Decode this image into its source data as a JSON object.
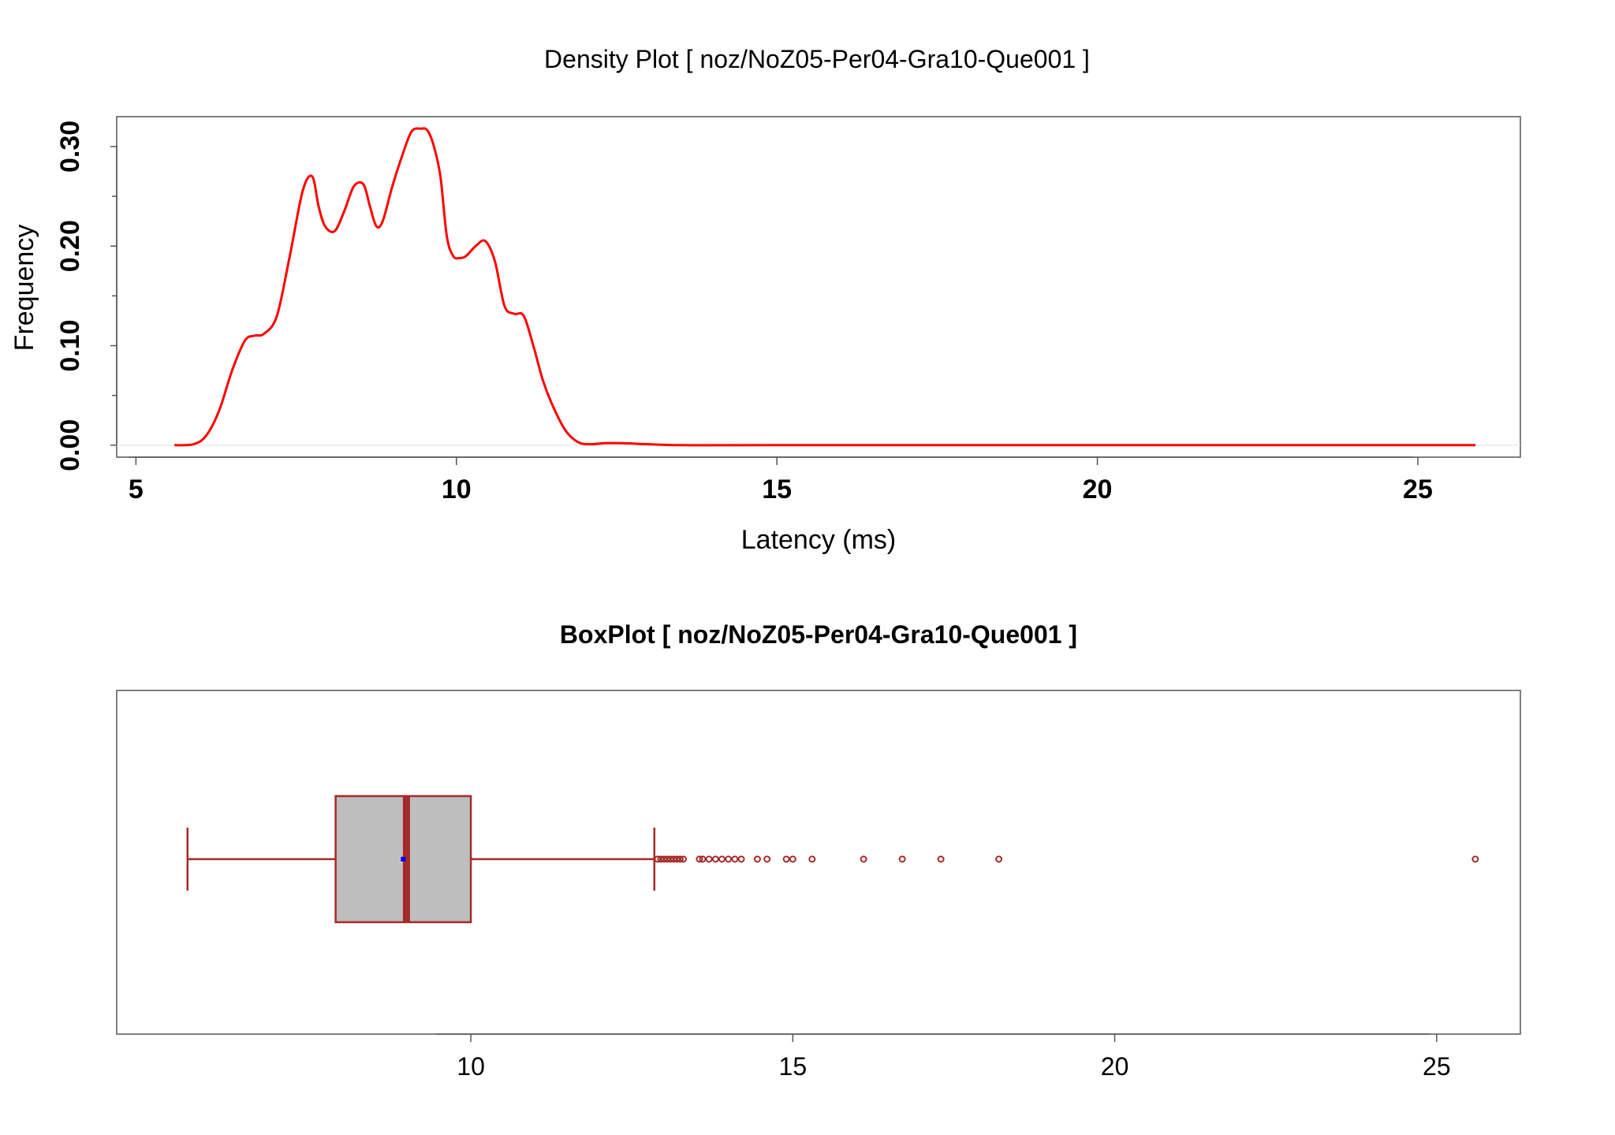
{
  "chart_data": [
    {
      "type": "line",
      "title": "Density Plot [ noz/NoZ05-Per04-Gra10-Que001 ]",
      "xlabel": "Latency (ms)",
      "ylabel": "Frequency",
      "xlim": [
        4.7,
        26.6
      ],
      "ylim": [
        -0.012,
        0.33
      ],
      "x_ticks": [
        "5",
        "10",
        "15",
        "20",
        "25"
      ],
      "x_tick_values": [
        5,
        10,
        15,
        20,
        25
      ],
      "y_ticks": [
        "0.00",
        "0.10",
        "0.20",
        "0.30"
      ],
      "y_tick_values": [
        0.0,
        0.1,
        0.2,
        0.3
      ],
      "y_minor_ticks": [
        0.05,
        0.15,
        0.25
      ],
      "grid": false,
      "color": "#ff0000",
      "series": [
        {
          "x": [
            5.6,
            5.9,
            6.1,
            6.3,
            6.5,
            6.7,
            6.85,
            7.0,
            7.2,
            7.4,
            7.6,
            7.75,
            7.85,
            7.95,
            8.1,
            8.25,
            8.4,
            8.55,
            8.65,
            8.75,
            8.85,
            9.0,
            9.15,
            9.3,
            9.45,
            9.55,
            9.65,
            9.75,
            9.85,
            9.95,
            10.05,
            10.15,
            10.3,
            10.45,
            10.6,
            10.75,
            10.9,
            11.05,
            11.2,
            11.35,
            11.5,
            11.7,
            11.9,
            12.1,
            12.3,
            12.6,
            13.0,
            13.5,
            15.0,
            20.0,
            25.9
          ],
          "y": [
            0.0,
            0.001,
            0.01,
            0.035,
            0.075,
            0.105,
            0.11,
            0.112,
            0.13,
            0.19,
            0.255,
            0.27,
            0.24,
            0.22,
            0.215,
            0.235,
            0.26,
            0.262,
            0.24,
            0.22,
            0.225,
            0.26,
            0.29,
            0.315,
            0.318,
            0.316,
            0.3,
            0.27,
            0.21,
            0.19,
            0.188,
            0.19,
            0.2,
            0.205,
            0.185,
            0.14,
            0.132,
            0.13,
            0.1,
            0.065,
            0.04,
            0.015,
            0.003,
            0.001,
            0.002,
            0.002,
            0.001,
            0.0,
            0.0,
            0.0,
            0.0
          ]
        }
      ]
    },
    {
      "type": "box",
      "title": "BoxPlot [ noz/NoZ05-Per04-Gra10-Que001 ]",
      "xlim": [
        4.5,
        26.3
      ],
      "x_ticks": [
        "10",
        "15",
        "20",
        "25"
      ],
      "x_tick_values": [
        10,
        15,
        20,
        25
      ],
      "color": "#a52a2a",
      "fill": "#bebebe",
      "mean_color": "#0000ff",
      "whisker_low": 5.6,
      "q1": 7.9,
      "median": 9.0,
      "q3": 10.0,
      "whisker_high": 12.85,
      "mean": 8.95,
      "outliers": [
        12.9,
        12.95,
        13.0,
        13.05,
        13.1,
        13.15,
        13.2,
        13.25,
        13.3,
        13.55,
        13.6,
        13.7,
        13.8,
        13.9,
        14.0,
        14.1,
        14.2,
        14.45,
        14.6,
        14.9,
        15.0,
        15.3,
        16.1,
        16.7,
        17.3,
        18.2,
        25.6
      ]
    }
  ]
}
